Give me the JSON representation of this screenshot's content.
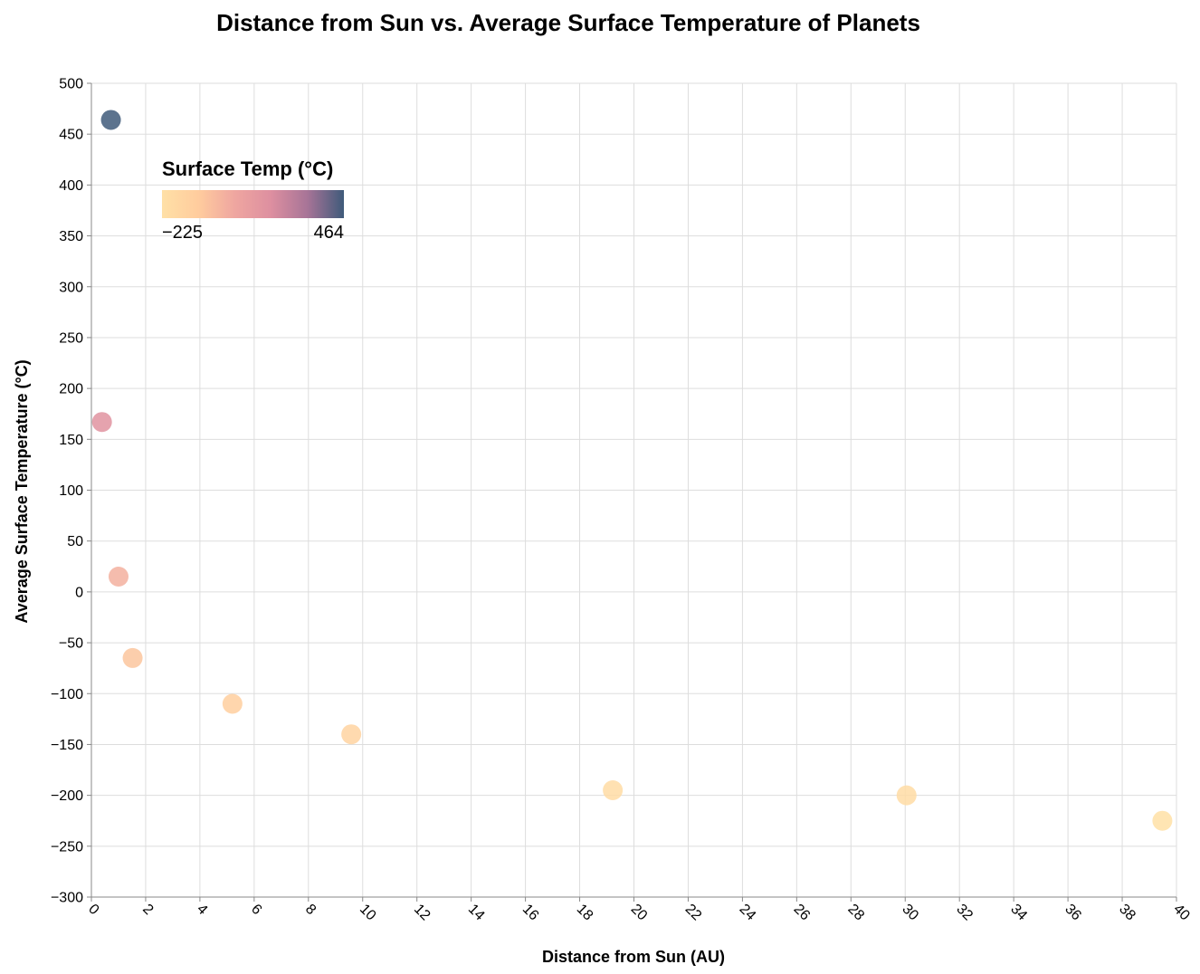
{
  "chart_data": {
    "type": "scatter",
    "title": "Distance from Sun vs. Average Surface Temperature of Planets",
    "xlabel": "Distance from Sun (AU)",
    "ylabel": "Average Surface Temperature (°C)",
    "xlim": [
      0,
      40
    ],
    "ylim": [
      -300,
      500
    ],
    "x_ticks": [
      "0",
      "2",
      "4",
      "6",
      "8",
      "10",
      "12",
      "14",
      "16",
      "18",
      "20",
      "22",
      "24",
      "26",
      "28",
      "30",
      "32",
      "34",
      "36",
      "38",
      "40"
    ],
    "y_ticks": [
      "500",
      "450",
      "400",
      "350",
      "300",
      "250",
      "200",
      "150",
      "100",
      "50",
      "0",
      "−50",
      "−100",
      "−150",
      "−200",
      "−250",
      "−300"
    ],
    "grid": true,
    "points": [
      {
        "x": 0.39,
        "y": 167
      },
      {
        "x": 0.72,
        "y": 464
      },
      {
        "x": 1.0,
        "y": 15
      },
      {
        "x": 1.52,
        "y": -65
      },
      {
        "x": 5.2,
        "y": -110
      },
      {
        "x": 9.58,
        "y": -140
      },
      {
        "x": 19.22,
        "y": -195
      },
      {
        "x": 30.05,
        "y": -200
      },
      {
        "x": 39.48,
        "y": -225
      }
    ],
    "legend": {
      "title": "Surface Temp (°C)",
      "min_label": "−225",
      "max_label": "464",
      "min": -225,
      "max": 464,
      "placement": "top-left",
      "colors": [
        "#ffe0a6",
        "#ffcc9e",
        "#efa6a0",
        "#dd8fa0",
        "#a77497",
        "#3f5a7a"
      ]
    }
  }
}
